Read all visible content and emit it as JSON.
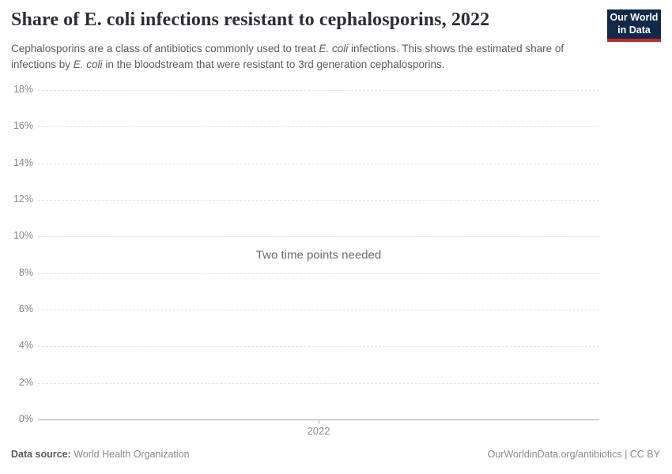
{
  "header": {
    "title": "Share of E. coli infections resistant to cephalosporins, 2022",
    "subtitle": {
      "p1": "Cephalosporins are a class of antibiotics commonly used to treat ",
      "i1": "E. coli",
      "p2": " infections. This shows the estimated share of infections by ",
      "i2": "E. coli",
      "p3": " in the bloodstream that were resistant to 3rd generation cephalosporins."
    }
  },
  "logo": {
    "line1": "Our World",
    "line2": "in Data",
    "bg_color": "#12294a",
    "accent_color": "#c5292a"
  },
  "chart_data": {
    "type": "line",
    "title": "Share of E. coli infections resistant to cephalosporins, 2022",
    "series": [],
    "message": "Two time points needed",
    "xlabel": "",
    "ylabel": "",
    "ylim": [
      0,
      18
    ],
    "yticks": [
      0,
      2,
      4,
      6,
      8,
      10,
      12,
      14,
      16,
      18
    ],
    "ytick_suffix": "%",
    "xticks": [
      "2022"
    ],
    "grid": "horizontal-dashed",
    "legend": "none"
  },
  "footer": {
    "source_label": "Data source:",
    "source_value": "World Health Organization",
    "credit": "OurWorldinData.org/antibiotics | CC BY"
  }
}
